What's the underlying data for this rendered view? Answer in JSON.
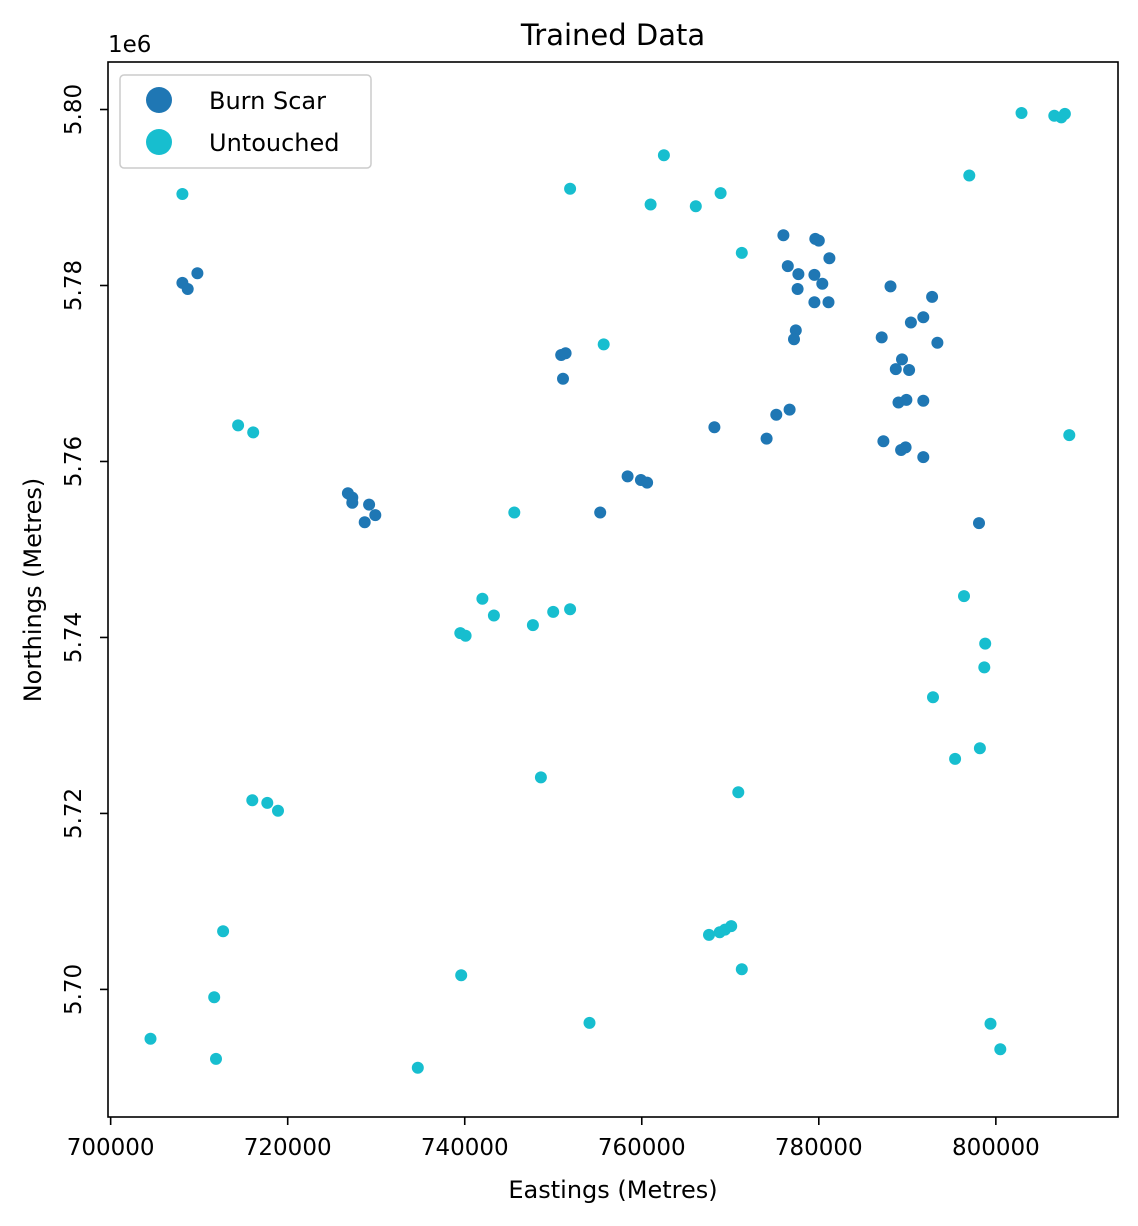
{
  "chart_data": {
    "type": "scatter",
    "title": "Trained Data",
    "xlabel": "Eastings (Metres)",
    "ylabel": "Northings (Metres)",
    "y_offset_label": "1e6",
    "xlim": [
      699700,
      813800
    ],
    "ylim": [
      5.6855,
      5.8054
    ],
    "x_ticks": [
      700000,
      720000,
      740000,
      760000,
      780000,
      800000
    ],
    "x_tick_labels": [
      "700000",
      "720000",
      "740000",
      "760000",
      "780000",
      "800000"
    ],
    "y_ticks": [
      5.7,
      5.72,
      5.74,
      5.76,
      5.78,
      5.8
    ],
    "y_tick_labels": [
      "5.70",
      "5.72",
      "5.74",
      "5.76",
      "5.78",
      "5.80"
    ],
    "grid": false,
    "legend_position": "top-left",
    "series": [
      {
        "name": "Burn Scar",
        "color": "#1f77b4",
        "points": [
          [
            708100,
            5.7803
          ],
          [
            708700,
            5.7796
          ],
          [
            709800,
            5.7814
          ],
          [
            726800,
            5.7564
          ],
          [
            727300,
            5.7559
          ],
          [
            727300,
            5.7553
          ],
          [
            728700,
            5.7531
          ],
          [
            729200,
            5.7551
          ],
          [
            729900,
            5.7539
          ],
          [
            750900,
            5.7721
          ],
          [
            751400,
            5.7723
          ],
          [
            751100,
            5.7694
          ],
          [
            755300,
            5.7542
          ],
          [
            758400,
            5.7583
          ],
          [
            759900,
            5.7579
          ],
          [
            760600,
            5.7576
          ],
          [
            768200,
            5.7639
          ],
          [
            774100,
            5.7626
          ],
          [
            775200,
            5.7653
          ],
          [
            776700,
            5.7659
          ],
          [
            776000,
            5.7857
          ],
          [
            779600,
            5.7853
          ],
          [
            780000,
            5.7851
          ],
          [
            776500,
            5.7822
          ],
          [
            777700,
            5.7813
          ],
          [
            779500,
            5.7812
          ],
          [
            781200,
            5.7831
          ],
          [
            780400,
            5.7802
          ],
          [
            777600,
            5.7796
          ],
          [
            779500,
            5.7781
          ],
          [
            781100,
            5.7781
          ],
          [
            777400,
            5.7749
          ],
          [
            777200,
            5.7739
          ],
          [
            788100,
            5.7799
          ],
          [
            792800,
            5.7787
          ],
          [
            791800,
            5.7764
          ],
          [
            790400,
            5.7758
          ],
          [
            787100,
            5.7741
          ],
          [
            793400,
            5.7735
          ],
          [
            789400,
            5.7716
          ],
          [
            788700,
            5.7705
          ],
          [
            790200,
            5.7704
          ],
          [
            789000,
            5.7667
          ],
          [
            789900,
            5.767
          ],
          [
            791800,
            5.7669
          ],
          [
            787300,
            5.7623
          ],
          [
            789300,
            5.7613
          ],
          [
            789800,
            5.7616
          ],
          [
            791800,
            5.7605
          ],
          [
            798100,
            5.753
          ]
        ]
      },
      {
        "name": "Untouched",
        "color": "#17becf",
        "points": [
          [
            708100,
            5.7904
          ],
          [
            714400,
            5.7641
          ],
          [
            716100,
            5.7633
          ],
          [
            751900,
            5.791
          ],
          [
            761000,
            5.7892
          ],
          [
            762500,
            5.7948
          ],
          [
            766100,
            5.789
          ],
          [
            768900,
            5.7905
          ],
          [
            771300,
            5.7837
          ],
          [
            755700,
            5.7733
          ],
          [
            745600,
            5.7542
          ],
          [
            742000,
            5.7444
          ],
          [
            743300,
            5.7425
          ],
          [
            739500,
            5.7405
          ],
          [
            740100,
            5.7402
          ],
          [
            747700,
            5.7414
          ],
          [
            750000,
            5.7429
          ],
          [
            751900,
            5.7432
          ],
          [
            748600,
            5.7241
          ],
          [
            716000,
            5.7215
          ],
          [
            717700,
            5.7212
          ],
          [
            718900,
            5.7203
          ],
          [
            712700,
            5.7066
          ],
          [
            711700,
            5.6991
          ],
          [
            711900,
            5.6921
          ],
          [
            704500,
            5.6944
          ],
          [
            734700,
            5.6911
          ],
          [
            739600,
            5.7016
          ],
          [
            754100,
            5.6962
          ],
          [
            767600,
            5.7062
          ],
          [
            768800,
            5.7065
          ],
          [
            769400,
            5.7068
          ],
          [
            770100,
            5.7072
          ],
          [
            771300,
            5.7023
          ],
          [
            770900,
            5.7224
          ],
          [
            802900,
            5.7996
          ],
          [
            806600,
            5.7993
          ],
          [
            807400,
            5.7991
          ],
          [
            807800,
            5.7995
          ],
          [
            797000,
            5.7925
          ],
          [
            808300,
            5.763
          ],
          [
            796400,
            5.7447
          ],
          [
            798800,
            5.7393
          ],
          [
            798700,
            5.7366
          ],
          [
            792900,
            5.7332
          ],
          [
            798200,
            5.7274
          ],
          [
            795400,
            5.7262
          ],
          [
            799400,
            5.6961
          ],
          [
            800500,
            5.6932
          ]
        ]
      }
    ]
  }
}
